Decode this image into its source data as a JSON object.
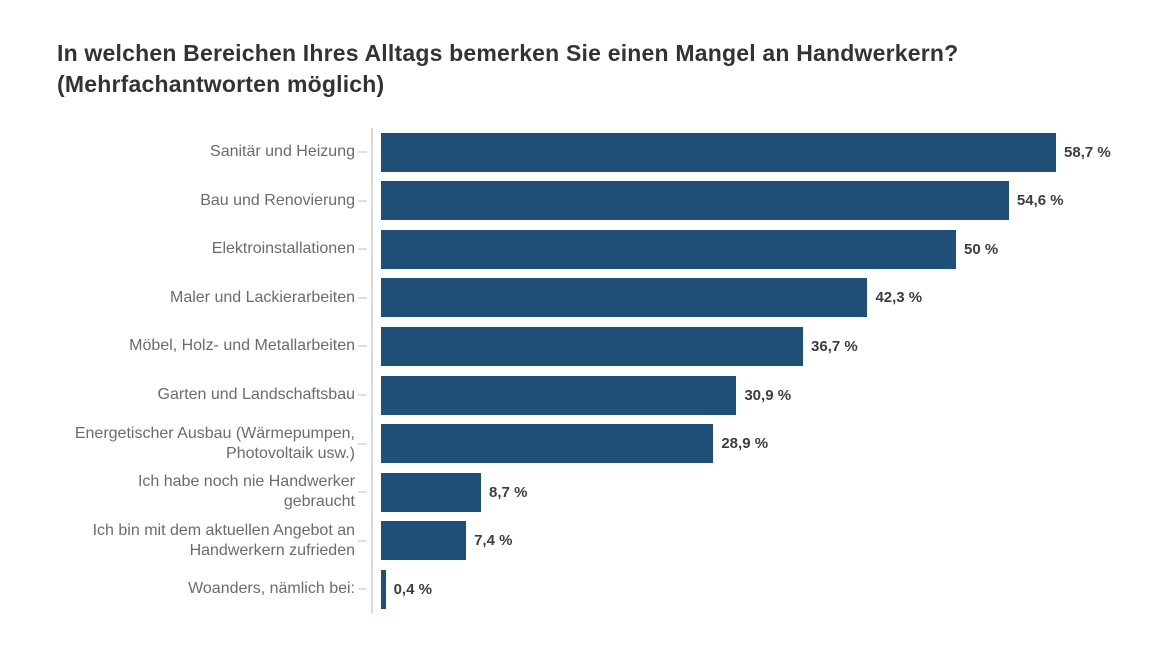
{
  "chart_data": {
    "type": "bar",
    "orientation": "horizontal",
    "title": "In welchen Bereichen Ihres Alltags bemerken Sie einen Mangel an Handwerkern? (Mehrfachantworten möglich)",
    "title_display": "In welchen Bereichen Ihres Alltags bemerken Sie einen Mangel an Handwerkern?\n(Mehrfachantworten möglich)",
    "categories": [
      "Sanitär und Heizung",
      "Bau und Renovierung",
      "Elektroinstallationen",
      "Maler und Lackierarbeiten",
      "Möbel, Holz- und Metallarbeiten",
      "Garten und Landschaftsbau",
      "Energetischer Ausbau (Wärmepumpen,\nPhotovoltaik usw.)",
      "Ich habe noch nie Handwerker\ngebraucht",
      "Ich bin mit dem aktuellen Angebot an\nHandwerkern zufrieden",
      "Woanders, nämlich bei:"
    ],
    "values": [
      58.7,
      54.6,
      50,
      42.3,
      36.7,
      30.9,
      28.9,
      8.7,
      7.4,
      0.4
    ],
    "value_labels": [
      "58,7 %",
      "54,6 %",
      "50 %",
      "42,3 %",
      "36,7 %",
      "30,9 %",
      "28,9 %",
      "8,7 %",
      "7,4 %",
      "0,4 %"
    ],
    "xlim": [
      0,
      60
    ],
    "grid": "off",
    "legend": "none",
    "bar_color": "#1f4e76",
    "axis_line_color": "#d9d9d9",
    "label_color": "#6b6b6b",
    "value_color": "#3d3d3d",
    "title_color": "#333333"
  }
}
